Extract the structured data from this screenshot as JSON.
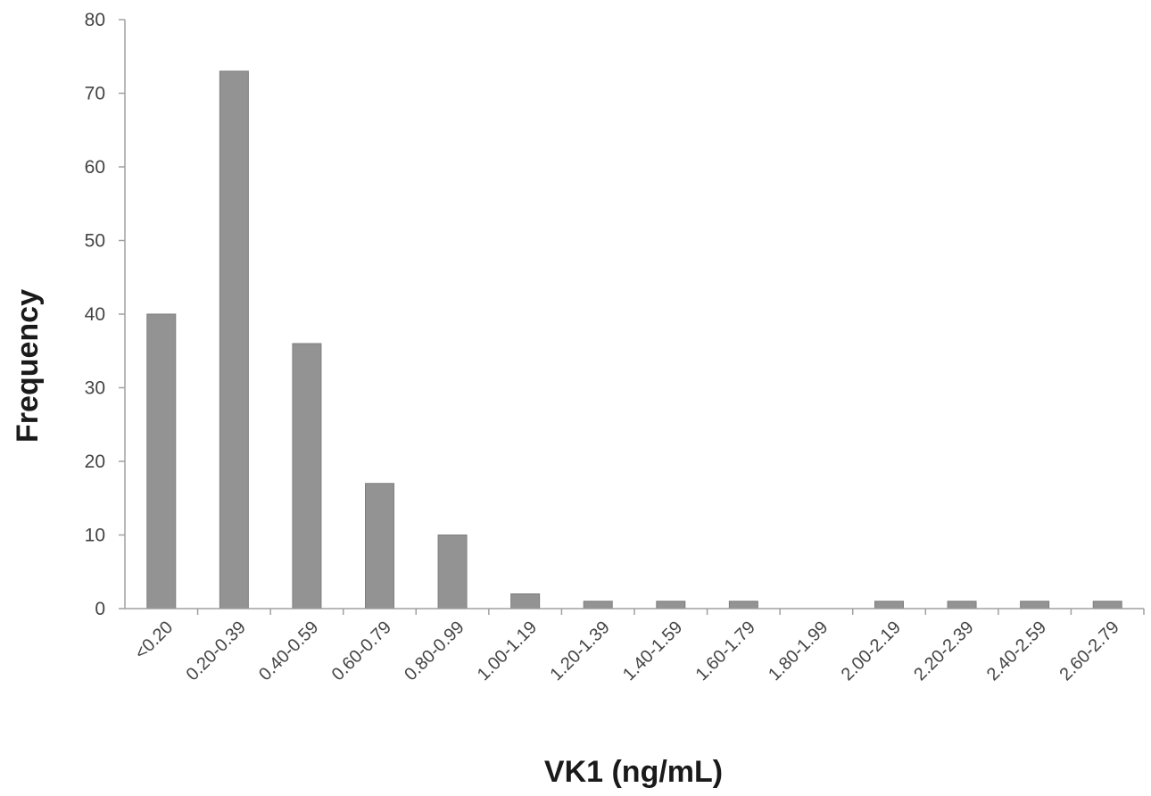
{
  "chart_data": {
    "type": "bar",
    "title": "",
    "xlabel": "VK1 (ng/mL)",
    "ylabel": "Frequency",
    "categories": [
      "<0.20",
      "0.20-0.39",
      "0.40-0.59",
      "0.60-0.79",
      "0.80-0.99",
      "1.00-1.19",
      "1.20-1.39",
      "1.40-1.59",
      "1.60-1.79",
      "1.80-1.99",
      "2.00-2.19",
      "2.20-2.39",
      "2.40-2.59",
      "2.60-2.79"
    ],
    "values": [
      40,
      73,
      36,
      17,
      10,
      2,
      1,
      1,
      1,
      0,
      1,
      1,
      1,
      1
    ],
    "ylim": [
      0,
      80
    ],
    "yticks": [
      0,
      10,
      20,
      30,
      40,
      50,
      60,
      70,
      80
    ],
    "grid": false,
    "legend": "none",
    "bar_color": "#939393"
  }
}
